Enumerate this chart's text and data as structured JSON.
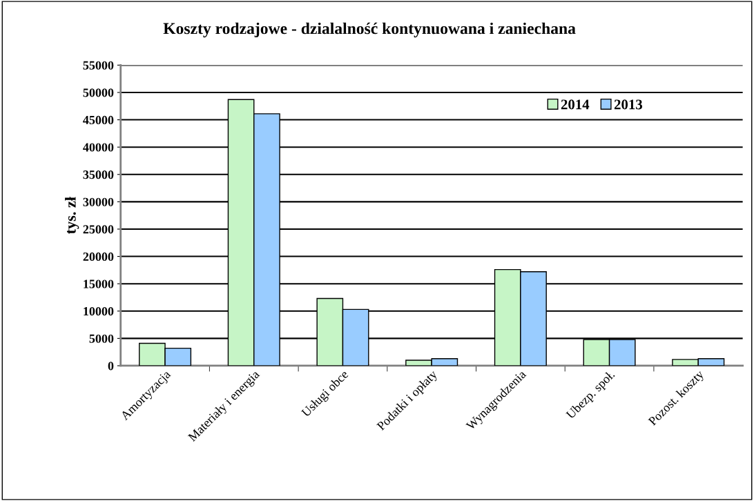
{
  "chart_data": {
    "type": "bar",
    "title": "Koszty rodzajowe - dzialalność kontynuowana i zaniechana",
    "ylabel": "tys. zł",
    "categories": [
      "Amortyzacja",
      "Materiały i energia",
      "Usługi obce",
      "Podatki i opłaty",
      "Wynagrodzenia",
      "Ubezp. społ.",
      "Pozost. koszty"
    ],
    "series": [
      {
        "name": "2014",
        "color": "#c6f5c6",
        "values": [
          4100,
          48700,
          12300,
          1000,
          17600,
          4800,
          1150
        ]
      },
      {
        "name": "2013",
        "color": "#99ccff",
        "values": [
          3200,
          46100,
          10300,
          1300,
          17200,
          4800,
          1300
        ]
      }
    ],
    "ylim": [
      0,
      55000
    ],
    "yticks": [
      0,
      5000,
      10000,
      15000,
      20000,
      25000,
      30000,
      35000,
      40000,
      45000,
      50000,
      55000
    ],
    "grid": "y",
    "legend": "top right"
  }
}
